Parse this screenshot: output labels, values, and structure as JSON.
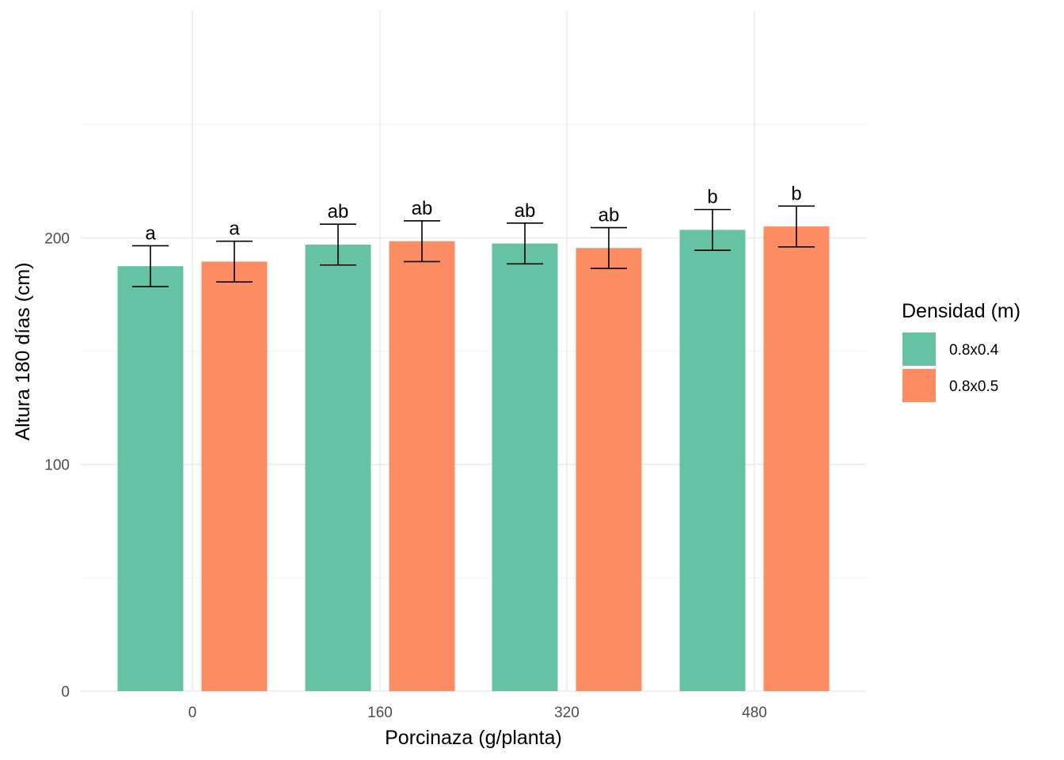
{
  "chart_data": {
    "type": "bar",
    "title": "",
    "xlabel": "Porcinaza (g/planta)",
    "ylabel": "Altura 180 días (cm)",
    "categories": [
      "0",
      "160",
      "320",
      "480"
    ],
    "ylim": [
      0,
      250
    ],
    "yticks": [
      "0",
      "100",
      "200"
    ],
    "grid": true,
    "legend": {
      "title": "Densidad (m)",
      "placement": "right"
    },
    "series": [
      {
        "name": "0.8x0.4",
        "color": "#66c2a5",
        "values": [
          187.5,
          197,
          197.5,
          203.5
        ],
        "error": [
          9,
          9,
          9,
          9
        ],
        "labels": [
          "a",
          "ab",
          "ab",
          "b"
        ]
      },
      {
        "name": "0.8x0.5",
        "color": "#fc8d62",
        "values": [
          189.5,
          198.5,
          195.5,
          205
        ],
        "error": [
          9,
          9,
          9,
          9
        ],
        "labels": [
          "a",
          "ab",
          "ab",
          "b"
        ]
      }
    ]
  }
}
